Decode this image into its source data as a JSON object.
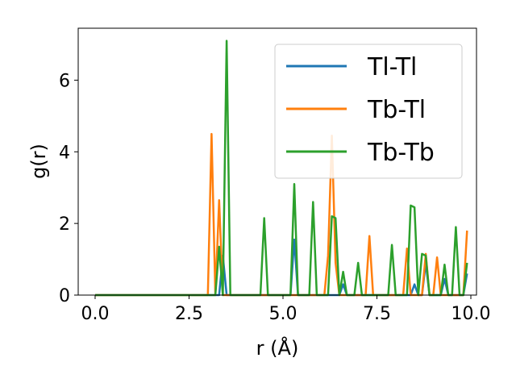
{
  "chart_data": {
    "type": "line",
    "xlabel": "r (Å)",
    "ylabel": "g(r)",
    "xlim": [
      -0.45,
      10.15
    ],
    "ylim": [
      0,
      7.45
    ],
    "xticks": [
      "0.0",
      "2.5",
      "5.0",
      "7.5",
      "10.0"
    ],
    "xtick_values": [
      0,
      2.5,
      5,
      7.5,
      10
    ],
    "yticks": [
      "0",
      "2",
      "4",
      "6"
    ],
    "ytick_values": [
      0,
      2,
      4,
      6
    ],
    "grid": false,
    "legend_position": "top-right",
    "series": [
      {
        "name": "Tl-Tl",
        "color": "#1f77b4",
        "x": [
          0,
          3.0,
          3.3,
          3.4,
          3.5,
          5.2,
          5.3,
          5.4,
          6.5,
          6.6,
          6.7,
          8.4,
          8.5,
          8.6,
          8.7,
          8.8,
          8.9,
          9.2,
          9.3,
          9.4,
          9.8,
          9.9
        ],
        "y": [
          0,
          0,
          0,
          1.1,
          0,
          0,
          1.55,
          0,
          0,
          0.3,
          0,
          0,
          0.3,
          0,
          0,
          0.9,
          0,
          0,
          0.45,
          0,
          0,
          0.6
        ]
      },
      {
        "name": "Tb-Tl",
        "color": "#ff7f0e",
        "x": [
          0,
          3.0,
          3.1,
          3.2,
          3.3,
          3.4,
          3.5,
          6.1,
          6.2,
          6.3,
          6.4,
          6.5,
          7.2,
          7.3,
          7.4,
          8.2,
          8.3,
          8.4,
          8.7,
          8.8,
          8.9,
          9.0,
          9.1,
          9.2,
          9.8,
          9.9
        ],
        "y": [
          0,
          0,
          4.5,
          0,
          2.65,
          0,
          0,
          0,
          1.1,
          4.45,
          0.9,
          0,
          0,
          1.65,
          0,
          0,
          1.3,
          0,
          0,
          1.15,
          0,
          0,
          1.05,
          0,
          0,
          1.8
        ]
      },
      {
        "name": "Tb-Tb",
        "color": "#2ca02c",
        "x": [
          0,
          3.2,
          3.3,
          3.4,
          3.5,
          3.6,
          4.4,
          4.5,
          4.6,
          5.2,
          5.3,
          5.4,
          5.7,
          5.8,
          5.9,
          6.2,
          6.3,
          6.4,
          6.5,
          6.6,
          6.7,
          6.9,
          7.0,
          7.1,
          7.8,
          7.9,
          8.0,
          8.3,
          8.4,
          8.5,
          8.6,
          8.7,
          8.8,
          8.9,
          9.0,
          9.2,
          9.3,
          9.4,
          9.5,
          9.6,
          9.7,
          9.8,
          9.9
        ],
        "y": [
          0,
          0,
          1.35,
          0,
          7.1,
          0,
          0,
          2.15,
          0,
          0,
          3.1,
          0,
          0,
          2.6,
          0,
          0,
          2.2,
          2.15,
          0,
          0.65,
          0,
          0,
          0.9,
          0,
          0,
          1.4,
          0,
          0,
          2.5,
          2.45,
          0,
          1.15,
          1.1,
          0,
          0,
          0,
          0.85,
          0,
          0,
          1.9,
          0,
          0,
          0.9
        ]
      }
    ]
  }
}
